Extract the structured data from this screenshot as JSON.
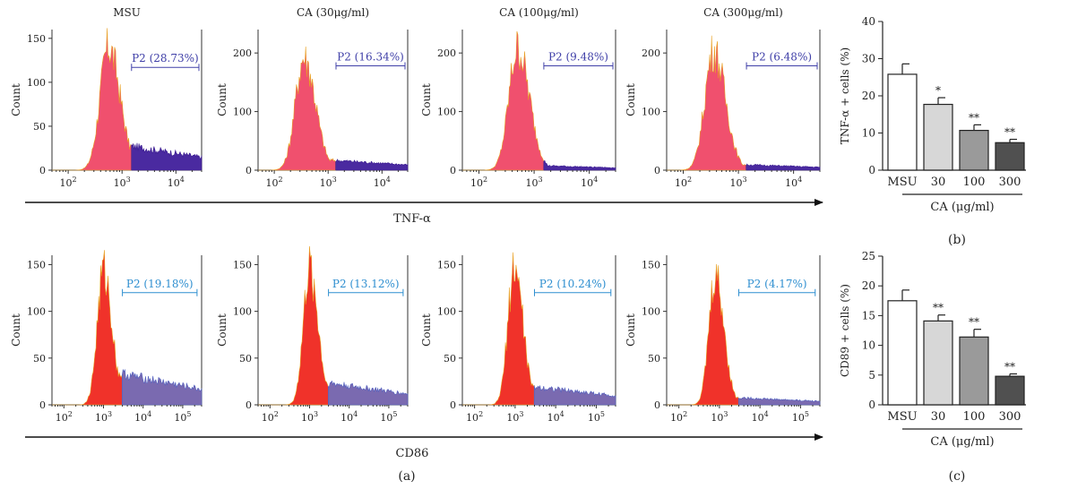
{
  "figure": {
    "labels": {
      "a": "(a)",
      "b": "(b)",
      "c": "(c)"
    },
    "arrows": {
      "top": "TNF-α",
      "bottom": "CD86"
    },
    "ylabel": "Count",
    "colors": {
      "peak_top": "#f0506e",
      "peak_bottom": "#f0322a",
      "tail_top": "#4a2aa0",
      "tail_bottom": "#7a6ab0",
      "gate_top": "#4040a8",
      "gate_bottom": "#2f8fd0"
    }
  },
  "chart_data": [
    {
      "type": "area",
      "id": "tnf-msu",
      "title": "MSU",
      "ylabel": "Count",
      "xscale": "log",
      "xticks": [
        "10^2",
        "10^3",
        "10^4"
      ],
      "yticks": [
        0,
        50,
        100,
        150
      ],
      "ylim": [
        0,
        160
      ],
      "xlim": [
        50,
        30000
      ],
      "peak": {
        "center_log": 2.75,
        "height": 140
      },
      "tail_height": 28,
      "gate": {
        "label": "P2 (28.73%)",
        "x_from": 1500,
        "x_to": 30000,
        "y": 117
      }
    },
    {
      "type": "area",
      "id": "tnf-ca30",
      "title": "CA (30μg/ml)",
      "ylabel": "Count",
      "xscale": "log",
      "xticks": [
        "10^2",
        "10^3",
        "10^4"
      ],
      "yticks": [
        0,
        100,
        200
      ],
      "ylim": [
        0,
        240
      ],
      "xlim": [
        50,
        30000
      ],
      "peak": {
        "center_log": 2.55,
        "height": 192
      },
      "tail_height": 18,
      "gate": {
        "label": "P2 (16.34%)",
        "x_from": 1400,
        "x_to": 30000,
        "y": 178
      }
    },
    {
      "type": "area",
      "id": "tnf-ca100",
      "title": "CA (100μg/ml)",
      "ylabel": "Count",
      "xscale": "log",
      "xticks": [
        "10^2",
        "10^3",
        "10^4"
      ],
      "yticks": [
        0,
        100,
        200
      ],
      "ylim": [
        0,
        240
      ],
      "xlim": [
        50,
        30000
      ],
      "peak": {
        "center_log": 2.7,
        "height": 208
      },
      "tail_height": 8,
      "gate": {
        "label": "P2 (9.48%)",
        "x_from": 1500,
        "x_to": 30000,
        "y": 178
      }
    },
    {
      "type": "area",
      "id": "tnf-ca300",
      "title": "CA (300μg/ml)",
      "ylabel": "Count",
      "xscale": "log",
      "xticks": [
        "10^2",
        "10^3",
        "10^4"
      ],
      "yticks": [
        0,
        100,
        200
      ],
      "ylim": [
        0,
        240
      ],
      "xlim": [
        50,
        30000
      ],
      "peak": {
        "center_log": 2.55,
        "height": 204
      },
      "tail_height": 10,
      "gate": {
        "label": "P2 (6.48%)",
        "x_from": 1400,
        "x_to": 30000,
        "y": 178
      }
    },
    {
      "type": "area",
      "id": "cd86-1",
      "title": "",
      "ylabel": "Count",
      "xscale": "log",
      "xticks": [
        "10^2",
        "10^3",
        "10^4",
        "10^5"
      ],
      "yticks": [
        0,
        50,
        100,
        150
      ],
      "ylim": [
        0,
        160
      ],
      "xlim": [
        50,
        300000
      ],
      "peak": {
        "center_log": 3.0,
        "height": 143
      },
      "tail_height": 34,
      "gate": {
        "label": "P2 (19.18%)",
        "x_from": 3000,
        "x_to": 230000,
        "y": 120
      }
    },
    {
      "type": "area",
      "id": "cd86-2",
      "title": "",
      "ylabel": "Count",
      "xscale": "log",
      "xticks": [
        "10^2",
        "10^3",
        "10^4",
        "10^5"
      ],
      "yticks": [
        0,
        50,
        100,
        150
      ],
      "ylim": [
        0,
        160
      ],
      "xlim": [
        50,
        300000
      ],
      "peak": {
        "center_log": 3.0,
        "height": 145
      },
      "tail_height": 24,
      "gate": {
        "label": "P2 (13.12%)",
        "x_from": 3000,
        "x_to": 230000,
        "y": 120
      }
    },
    {
      "type": "area",
      "id": "cd86-3",
      "title": "",
      "ylabel": "Count",
      "xscale": "log",
      "xticks": [
        "10^2",
        "10^3",
        "10^4",
        "10^5"
      ],
      "yticks": [
        0,
        50,
        100,
        150
      ],
      "ylim": [
        0,
        160
      ],
      "xlim": [
        50,
        300000
      ],
      "peak": {
        "center_log": 2.98,
        "height": 148
      },
      "tail_height": 20,
      "gate": {
        "label": "P2 (10.24%)",
        "x_from": 3000,
        "x_to": 230000,
        "y": 120
      }
    },
    {
      "type": "area",
      "id": "cd86-4",
      "title": "",
      "ylabel": "Count",
      "xscale": "log",
      "xticks": [
        "10^2",
        "10^3",
        "10^4",
        "10^5"
      ],
      "yticks": [
        0,
        50,
        100,
        150
      ],
      "ylim": [
        0,
        160
      ],
      "xlim": [
        50,
        300000
      ],
      "peak": {
        "center_log": 2.9,
        "height": 137
      },
      "tail_height": 8,
      "gate": {
        "label": "P2 (4.17%)",
        "x_from": 3000,
        "x_to": 230000,
        "y": 120
      }
    },
    {
      "type": "bar",
      "id": "bar-b",
      "ylabel": "TNF-α + cells (%)",
      "ylim": [
        0,
        40
      ],
      "yticks": [
        0,
        10,
        20,
        30,
        40
      ],
      "categories": [
        "MSU",
        "30",
        "100",
        "300"
      ],
      "values": [
        25.8,
        17.7,
        10.7,
        7.4
      ],
      "errors": [
        2.8,
        1.8,
        1.5,
        0.9
      ],
      "significance": [
        "",
        "*",
        "**",
        "**"
      ],
      "fills": [
        "#ffffff",
        "#d7d7d7",
        "#9a9a9a",
        "#505050"
      ],
      "group_label": "CA (μg/ml)"
    },
    {
      "type": "bar",
      "id": "bar-c",
      "ylabel": "CD89 + cells (%)",
      "ylim": [
        0,
        25
      ],
      "yticks": [
        0,
        5,
        10,
        15,
        20,
        25
      ],
      "categories": [
        "MSU",
        "30",
        "100",
        "300"
      ],
      "values": [
        17.5,
        14.1,
        11.4,
        4.8
      ],
      "errors": [
        1.8,
        1.0,
        1.3,
        0.4
      ],
      "significance": [
        "",
        "**",
        "**",
        "**"
      ],
      "fills": [
        "#ffffff",
        "#d7d7d7",
        "#9a9a9a",
        "#505050"
      ],
      "group_label": "CA (μg/ml)"
    }
  ]
}
